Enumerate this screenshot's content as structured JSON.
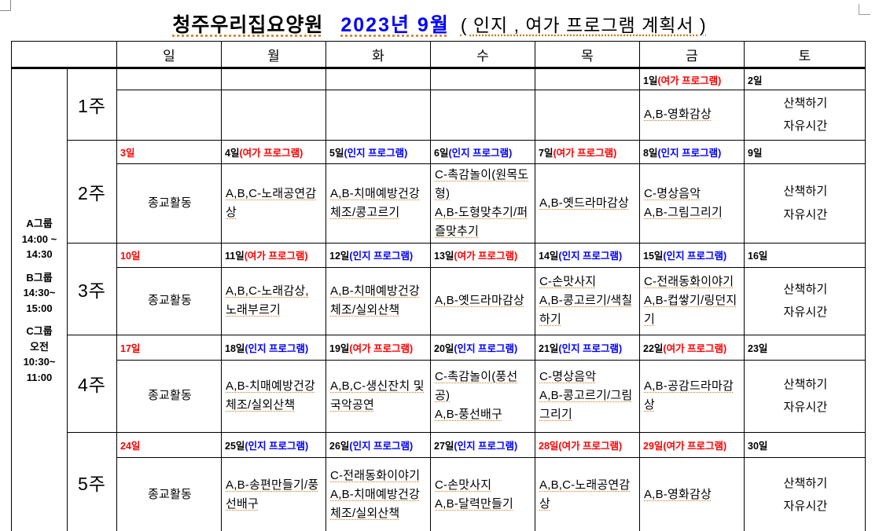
{
  "title": {
    "facility": "청주우리집요양원",
    "month": "2023년 9월",
    "suffix": "( 인지 , 여가 프로그램 계획서 )"
  },
  "colors": {
    "red": "#ff0000",
    "blue": "#0000ff",
    "underline_orange": "#cc7a1e"
  },
  "sidebar": {
    "groups": [
      {
        "name": "A그룹",
        "lines": [
          "14:00 ~",
          "14:30"
        ]
      },
      {
        "name": "B그룹",
        "lines": [
          "14:30~",
          "15:00"
        ]
      },
      {
        "name": "C그룹",
        "lines": [
          "오전",
          "10:30~",
          "11:00"
        ]
      }
    ]
  },
  "table": {
    "day_headers": [
      "일",
      "월",
      "화",
      "수",
      "목",
      "금",
      "토"
    ],
    "weeks": [
      {
        "label": "1주",
        "days": [
          {
            "date": "",
            "date_color": "black",
            "tag": "",
            "tag_color": "",
            "programs": []
          },
          {
            "date": "",
            "date_color": "black",
            "tag": "",
            "tag_color": "",
            "programs": []
          },
          {
            "date": "",
            "date_color": "black",
            "tag": "",
            "tag_color": "",
            "programs": []
          },
          {
            "date": "",
            "date_color": "black",
            "tag": "",
            "tag_color": "",
            "programs": []
          },
          {
            "date": "",
            "date_color": "black",
            "tag": "",
            "tag_color": "",
            "programs": []
          },
          {
            "date": "1일",
            "date_color": "black",
            "tag": "(여가 프로그램)",
            "tag_color": "red",
            "programs": [
              "A,B-영화감상"
            ]
          },
          {
            "date": "2일",
            "date_color": "black",
            "tag": "",
            "tag_color": "",
            "center": true,
            "programs": [
              "산책하기",
              "자유시간"
            ]
          }
        ]
      },
      {
        "label": "2주",
        "days": [
          {
            "date": "3일",
            "date_color": "red",
            "tag": "",
            "tag_color": "",
            "center": true,
            "programs": [
              "종교활동"
            ]
          },
          {
            "date": "4일",
            "date_color": "black",
            "tag": "(여가 프로그램)",
            "tag_color": "red",
            "programs": [
              "A,B,C-노래공연감상"
            ]
          },
          {
            "date": "5일",
            "date_color": "black",
            "tag": "(인지 프로그램)",
            "tag_color": "blue",
            "programs": [
              "A,B-치매예방건강체조/콩고르기"
            ]
          },
          {
            "date": "6일",
            "date_color": "black",
            "tag": "(인지 프로그램)",
            "tag_color": "blue",
            "programs": [
              "C-촉감놀이(원목도형)",
              "A,B-도형맞추기/퍼즐맞추기"
            ]
          },
          {
            "date": "7일",
            "date_color": "black",
            "tag": "(여가 프로그램)",
            "tag_color": "red",
            "programs": [
              "A,B-옛드라마감상"
            ]
          },
          {
            "date": "8일",
            "date_color": "black",
            "tag": "(인지 프로그램)",
            "tag_color": "blue",
            "programs": [
              "C-명상음악",
              "A,B-그림그리기"
            ]
          },
          {
            "date": "9일",
            "date_color": "black",
            "tag": "",
            "tag_color": "",
            "center": true,
            "programs": [
              "산책하기",
              "자유시간"
            ]
          }
        ]
      },
      {
        "label": "3주",
        "days": [
          {
            "date": "10일",
            "date_color": "red",
            "tag": "",
            "tag_color": "",
            "center": true,
            "programs": [
              "종교활동"
            ]
          },
          {
            "date": "11일",
            "date_color": "black",
            "tag": "(여가 프로그램)",
            "tag_color": "red",
            "programs": [
              "A,B,C-노래감상, 노래부르기"
            ]
          },
          {
            "date": "12일",
            "date_color": "black",
            "tag": "(인지 프로그램)",
            "tag_color": "blue",
            "programs": [
              "A,B-치매예방건강체조/실외산책"
            ]
          },
          {
            "date": "13일",
            "date_color": "black",
            "tag": "(여가 프로그램)",
            "tag_color": "red",
            "programs": [
              "A,B-옛드라마감상"
            ]
          },
          {
            "date": "14일",
            "date_color": "black",
            "tag": "(인지 프로그램)",
            "tag_color": "blue",
            "programs": [
              "C-손맛사지",
              "A,B-콩고르기/색칠하기"
            ]
          },
          {
            "date": "15일",
            "date_color": "black",
            "tag": "(인지 프로그램)",
            "tag_color": "blue",
            "programs": [
              "C-전래동화이야기",
              "A,B-컵쌓기/링던지기"
            ]
          },
          {
            "date": "16일",
            "date_color": "black",
            "tag": "",
            "tag_color": "",
            "center": true,
            "programs": [
              "산책하기",
              "자유시간"
            ]
          }
        ]
      },
      {
        "label": "4주",
        "days": [
          {
            "date": "17일",
            "date_color": "red",
            "tag": "",
            "tag_color": "",
            "center": true,
            "programs": [
              "종교활동"
            ]
          },
          {
            "date": "18일",
            "date_color": "black",
            "tag": "(인지 프로그램)",
            "tag_color": "blue",
            "programs": [
              "A,B-치매예방건강체조/실외산책"
            ]
          },
          {
            "date": "19일",
            "date_color": "black",
            "tag": "(여가 프로그램)",
            "tag_color": "red",
            "programs": [
              "A,B,C-생신잔치 및 국악공연"
            ]
          },
          {
            "date": "20일",
            "date_color": "black",
            "tag": "(인지 프로그램)",
            "tag_color": "blue",
            "programs": [
              "C-촉감놀이(풍선공)",
              "A,B-풍선배구"
            ]
          },
          {
            "date": "21일",
            "date_color": "black",
            "tag": "(인지 프로그램)",
            "tag_color": "blue",
            "programs": [
              "C-명상음악",
              "A,B-콩고르기/그림그리기"
            ]
          },
          {
            "date": "22일",
            "date_color": "black",
            "tag": "(여가 프로그램)",
            "tag_color": "red",
            "programs": [
              "A,B-공감드라마감상"
            ]
          },
          {
            "date": "23일",
            "date_color": "black",
            "tag": "",
            "tag_color": "",
            "center": true,
            "programs": [
              "산책하기",
              "자유시간"
            ]
          }
        ]
      },
      {
        "label": "5주",
        "days": [
          {
            "date": "24일",
            "date_color": "red",
            "tag": "",
            "tag_color": "",
            "center": true,
            "programs": [
              "종교활동"
            ]
          },
          {
            "date": "25일",
            "date_color": "black",
            "tag": "(인지 프로그램)",
            "tag_color": "blue",
            "programs": [
              "A,B-송편만들기/풍선배구"
            ]
          },
          {
            "date": "26일",
            "date_color": "black",
            "tag": "(인지 프로그램)",
            "tag_color": "blue",
            "programs": [
              "C-전래동화이야기",
              "A,B-치매예방건강체조/실외산책"
            ]
          },
          {
            "date": "27일",
            "date_color": "black",
            "tag": "(인지 프로그램)",
            "tag_color": "blue",
            "programs": [
              "C-손맛사지",
              "A,B-달력만들기"
            ]
          },
          {
            "date": "28일",
            "date_color": "red",
            "tag": "(여가 프로그램)",
            "tag_color": "red",
            "programs": [
              "A,B,C-노래공연감상"
            ]
          },
          {
            "date": "29일",
            "date_color": "red",
            "tag": "(여가 프로그램)",
            "tag_color": "red",
            "programs": [
              "A,B-영화감상"
            ]
          },
          {
            "date": "30일",
            "date_color": "black",
            "tag": "",
            "tag_color": "",
            "center": true,
            "programs": [
              "산책하기",
              "자유시간"
            ]
          }
        ]
      }
    ]
  }
}
